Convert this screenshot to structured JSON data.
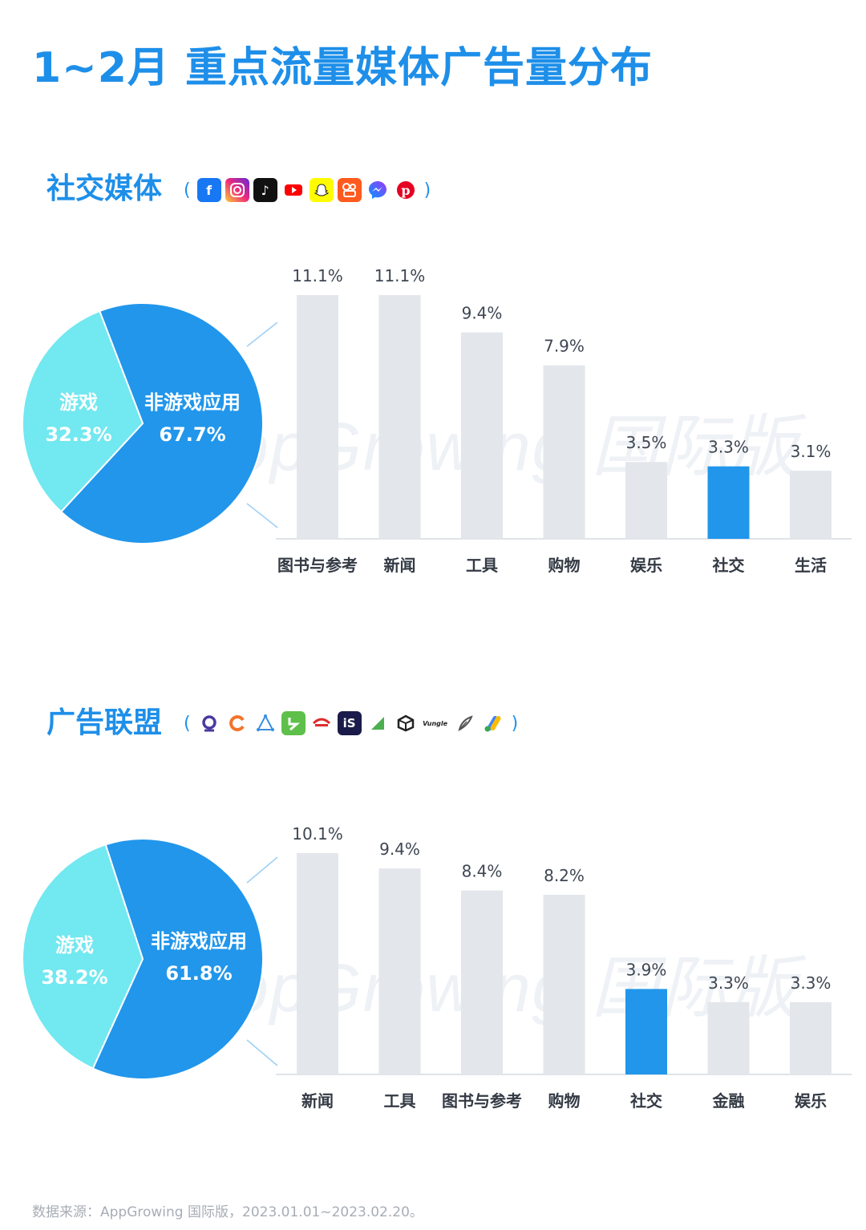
{
  "page": {
    "title": "1~2月 重点流量媒体广告量分布",
    "watermark": "AppGrowing 国际版",
    "source": "数据来源：AppGrowing 国际版，2023.01.01~2023.02.20。"
  },
  "colors": {
    "title_blue": "#1e8fe9",
    "pie_non_game": "#2196eb",
    "pie_game": "#72e8f0",
    "bar_gray": "#e3e6ea",
    "bar_highlight": "#2196eb",
    "label_text": "#333a44"
  },
  "sections": [
    {
      "heading": "社交媒体",
      "icon_names": [
        "facebook-icon",
        "instagram-icon",
        "tiktok-icon",
        "youtube-icon",
        "snapchat-icon",
        "kuaishou-icon",
        "messenger-icon",
        "pinterest-icon"
      ]
    },
    {
      "heading": "广告联盟",
      "icon_names": [
        "adnetwork-q-icon",
        "adnetwork-c-icon",
        "applovin-icon",
        "adnetwork-green-icon",
        "pangle-icon",
        "ironsource-icon",
        "adnetwork-leaf-icon",
        "unity-icon",
        "vungle-icon",
        "adnetwork-quill-icon",
        "google-ads-icon"
      ]
    }
  ],
  "chart_data": [
    {
      "type": "pie",
      "slices": [
        {
          "name": "非游戏应用",
          "label": "67.7%",
          "value": 67.7
        },
        {
          "name": "游戏",
          "label": "32.3%",
          "value": 32.3
        }
      ]
    },
    {
      "type": "bar",
      "categories": [
        "图书与参考",
        "新闻",
        "工具",
        "购物",
        "娱乐",
        "社交",
        "生活"
      ],
      "values": [
        11.1,
        11.1,
        9.4,
        7.9,
        3.5,
        3.3,
        3.1
      ],
      "value_labels": [
        "11.1%",
        "11.1%",
        "9.4%",
        "7.9%",
        "3.5%",
        "3.3%",
        "3.1%"
      ],
      "highlight": "社交",
      "ylim": [
        0,
        11.1
      ]
    },
    {
      "type": "pie",
      "slices": [
        {
          "name": "非游戏应用",
          "label": "61.8%",
          "value": 61.8
        },
        {
          "name": "游戏",
          "label": "38.2%",
          "value": 38.2
        }
      ]
    },
    {
      "type": "bar",
      "categories": [
        "新闻",
        "工具",
        "图书与参考",
        "购物",
        "社交",
        "金融",
        "娱乐"
      ],
      "values": [
        10.1,
        9.4,
        8.4,
        8.2,
        3.9,
        3.3,
        3.3
      ],
      "value_labels": [
        "10.1%",
        "9.4%",
        "8.4%",
        "8.2%",
        "3.9%",
        "3.3%",
        "3.3%"
      ],
      "highlight": "社交",
      "ylim": [
        0,
        10.1
      ]
    }
  ]
}
